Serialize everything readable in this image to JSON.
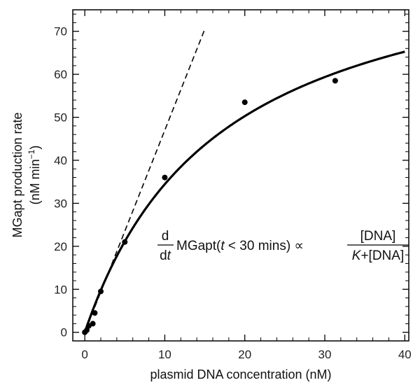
{
  "chart_data": {
    "type": "scatter",
    "xlabel": "plasmid DNA concentration (nM)",
    "ylabel_line1": "MGapt production rate",
    "ylabel_line2_base": "(nM min",
    "ylabel_line2_sup": "−1",
    "ylabel_line2_end": ")",
    "xlim": [
      -1.5,
      40.5
    ],
    "ylim": [
      -2,
      75
    ],
    "xticks": [
      0,
      10,
      20,
      30,
      40
    ],
    "yticks": [
      0,
      10,
      20,
      30,
      40,
      50,
      60,
      70
    ],
    "minor_x_step": 2,
    "minor_y_step": 2,
    "points": [
      {
        "x": 0.0,
        "y": 0.0
      },
      {
        "x": 0.25,
        "y": 0.5
      },
      {
        "x": 0.5,
        "y": 1.5
      },
      {
        "x": 1.0,
        "y": 2.0
      },
      {
        "x": 1.25,
        "y": 4.5
      },
      {
        "x": 2.0,
        "y": 9.5
      },
      {
        "x": 5.0,
        "y": 21.0
      },
      {
        "x": 10.0,
        "y": 36.0
      },
      {
        "x": 20.0,
        "y": 53.5
      },
      {
        "x": 31.3,
        "y": 58.5
      }
    ],
    "fit_curve": {
      "vmax": 93.0,
      "K": 17.0,
      "x_range": [
        0,
        40
      ]
    },
    "linear_tangent": {
      "slope": 4.7,
      "x_range": [
        0,
        15
      ]
    },
    "equation": {
      "frac1_num": "d",
      "frac1_den_base": "d",
      "frac1_den_var": "t",
      "body_start": "MGapt(",
      "body_var": "t",
      "body_rest": " < 30 mins) ∝ ",
      "frac2_num": "[DNA]",
      "frac2_den_var": "K",
      "frac2_den_rest": "+[DNA]"
    }
  }
}
